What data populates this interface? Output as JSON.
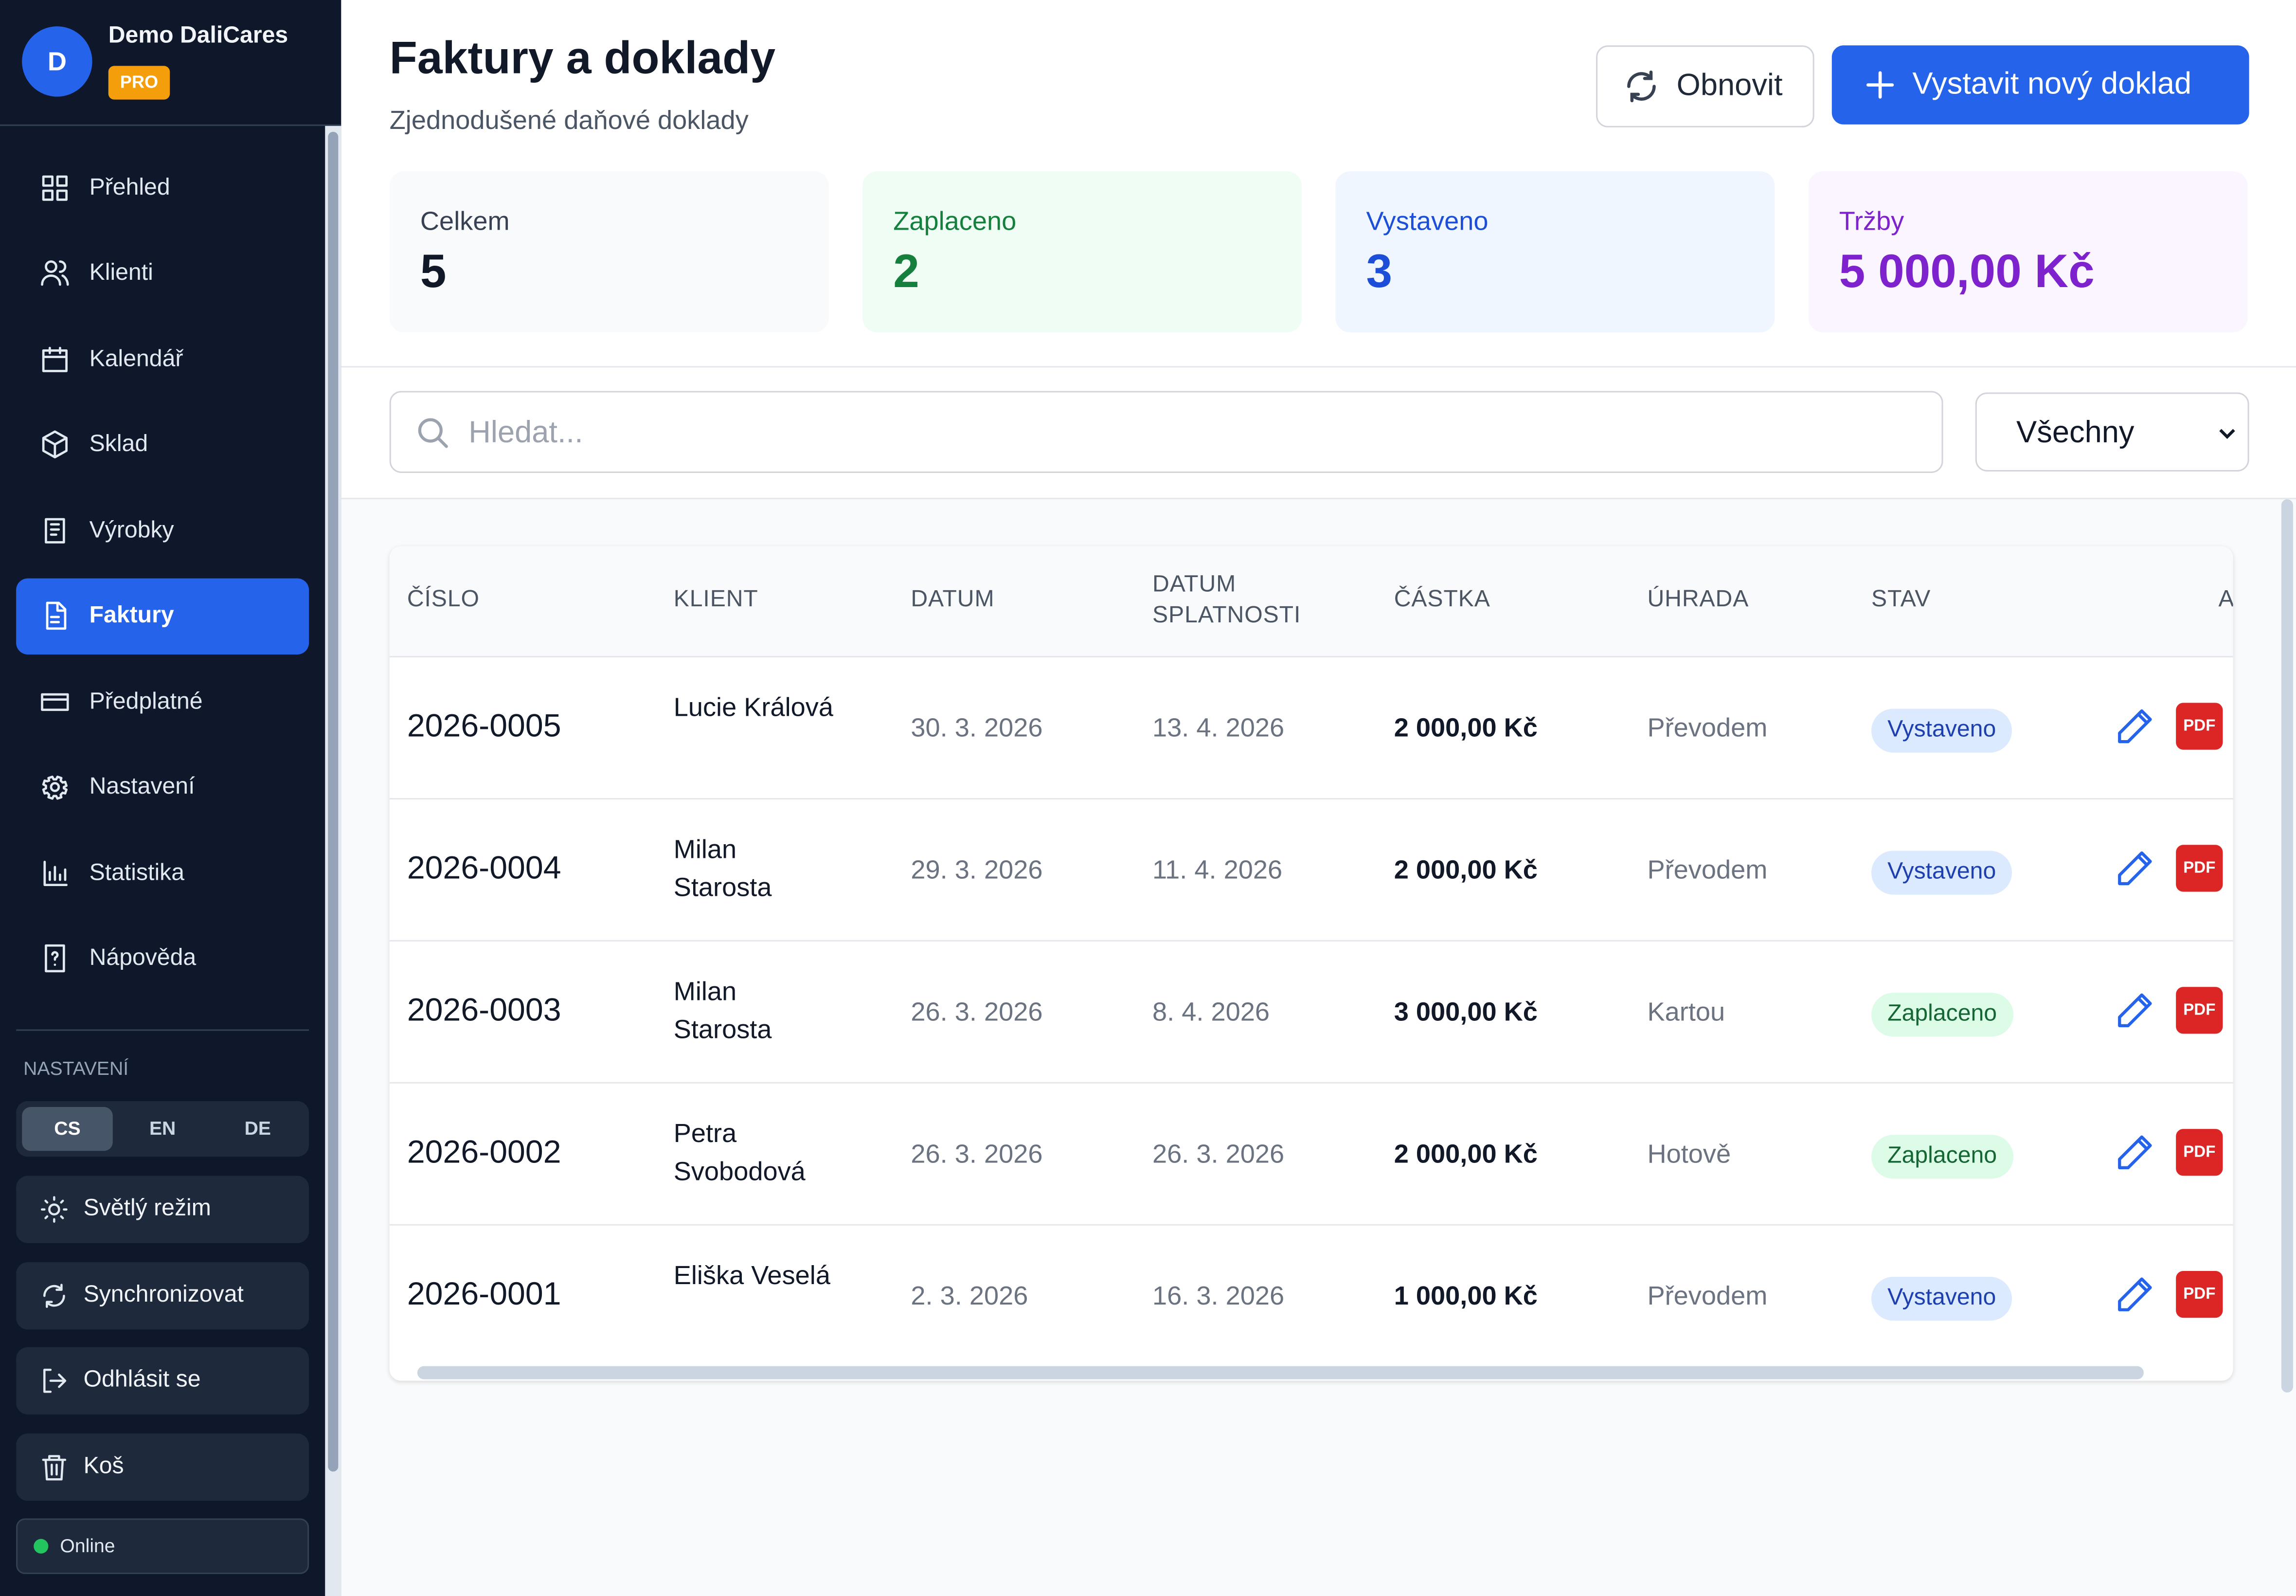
{
  "sidebar": {
    "avatar": "D",
    "user": "Demo DaliCares",
    "badge": "PRO",
    "nav": [
      "Přehled",
      "Klienti",
      "Kalendář",
      "Sklad",
      "Výrobky",
      "Faktury",
      "Předplatné",
      "Nastavení",
      "Statistika",
      "Nápověda"
    ],
    "settings_label": "NASTAVENÍ",
    "languages": [
      "CS",
      "EN",
      "DE"
    ],
    "actions": [
      "Světlý režim",
      "Synchronizovat",
      "Odhlásit se",
      "Koš"
    ],
    "status": "Online"
  },
  "header": {
    "title": "Faktury a doklady",
    "subtitle": "Zjednodušené daňové doklady",
    "refresh": "Obnovit",
    "new": "Vystavit nový doklad"
  },
  "stats": [
    {
      "label": "Celkem",
      "value": 5
    },
    {
      "label": "Zaplaceno",
      "value": 2
    },
    {
      "label": "Vystaveno",
      "value": 3
    },
    {
      "label": "Tržby",
      "value": "5 000,00 Kč"
    }
  ],
  "search": {
    "placeholder": "Hledat...",
    "filter": "Všechny"
  },
  "table": {
    "columns": [
      "ČÍSLO",
      "KLIENT",
      "DATUM",
      "DATUM SPLATNOSTI",
      "ČÁSTKA",
      "ÚHRADA",
      "STAV",
      "A"
    ],
    "pdf_label": "PDF",
    "rows": [
      [
        "2026-0005",
        "Lucie Králová",
        "30. 3. 2026",
        "13. 4. 2026",
        "2 000,00 Kč",
        "Převodem",
        "Vystaveno"
      ],
      [
        "2026-0004",
        "Milan Starosta",
        "29. 3. 2026",
        "11. 4. 2026",
        "2 000,00 Kč",
        "Převodem",
        "Vystaveno"
      ],
      [
        "2026-0003",
        "Milan Starosta",
        "26. 3. 2026",
        "8. 4. 2026",
        "3 000,00 Kč",
        "Kartou",
        "Zaplaceno"
      ],
      [
        "2026-0002",
        "Petra Svobodová",
        "26. 3. 2026",
        "26. 3. 2026",
        "2 000,00 Kč",
        "Hotově",
        "Zaplaceno"
      ],
      [
        "2026-0001",
        "Eliška Veselá",
        "2. 3. 2026",
        "16. 3. 2026",
        "1 000,00 Kč",
        "Převodem",
        "Vystaveno"
      ]
    ]
  }
}
